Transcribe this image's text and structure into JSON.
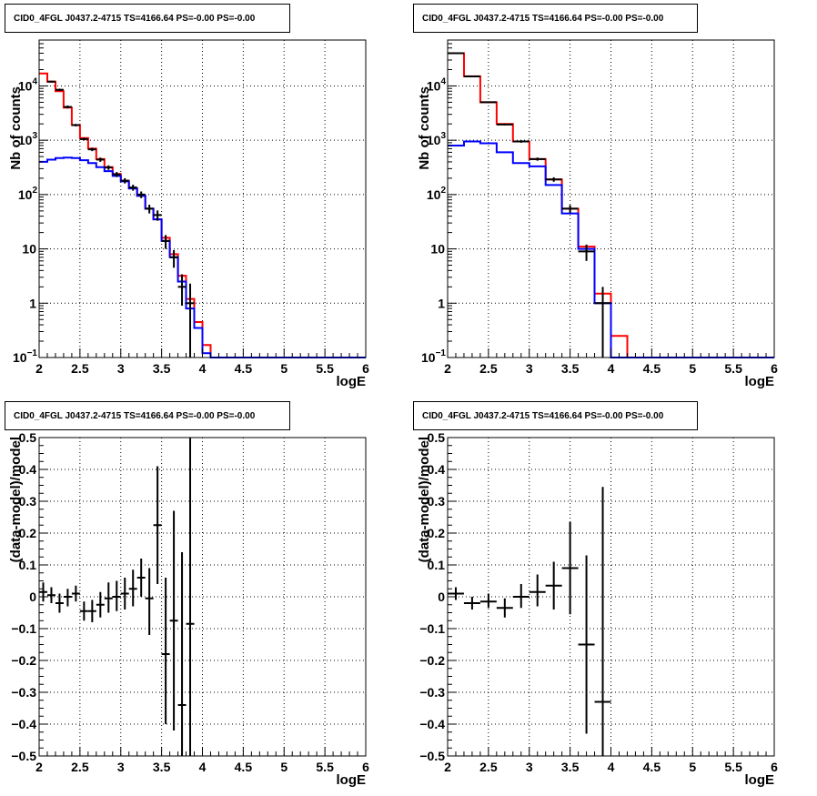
{
  "chart_data": [
    {
      "type": "line",
      "title": "CID0_4FGL J0437.2-4715 TS=4166.64 PS=-0.00 PS=-0.00",
      "xlabel": "logE",
      "ylabel": "Nb of counts",
      "xlim": [
        2,
        6
      ],
      "ylim": [
        0.1,
        70000
      ],
      "ylog": true,
      "grid": true,
      "xticks": [
        "2",
        "2.5",
        "3",
        "3.5",
        "4",
        "4.5",
        "5",
        "5.5",
        "6"
      ],
      "yticks": [
        {
          "v": 0.1,
          "m": "10",
          "e": "−1"
        },
        {
          "v": 1,
          "m": "1",
          "e": ""
        },
        {
          "v": 10,
          "m": "10",
          "e": ""
        },
        {
          "v": 100,
          "m": "10",
          "e": "2"
        },
        {
          "v": 1000,
          "m": "10",
          "e": "3"
        },
        {
          "v": 10000,
          "m": "10",
          "e": "4"
        }
      ],
      "series": [
        {
          "color": "#ff0000",
          "kind": "step",
          "edges": [
            2,
            2.1,
            2.2,
            2.3,
            2.4,
            2.5,
            2.6,
            2.7,
            2.8,
            2.9,
            3,
            3.1,
            3.2,
            3.3,
            3.4,
            3.5,
            3.6,
            3.7,
            3.8,
            3.9,
            4,
            4.1,
            4.2,
            4.3,
            4.4,
            4.5,
            4.6,
            4.7,
            4.8,
            4.9,
            5,
            5.1,
            5.2,
            5.3,
            5.4,
            5.5,
            5.6,
            5.7,
            5.8,
            5.9,
            6
          ],
          "values": [
            17000,
            12000,
            8000,
            4000,
            1900,
            1100,
            700,
            450,
            320,
            240,
            180,
            130,
            95,
            55,
            35,
            16,
            8,
            3.2,
            1.2,
            0.45,
            0.17,
            0.1,
            0.1,
            0.1,
            0.1,
            0.1,
            0.1,
            0.1,
            0.1,
            0.1,
            0.1,
            0.1,
            0.1,
            0.1,
            0.1,
            0.1,
            0.1,
            0.1,
            0.1,
            0.1
          ]
        },
        {
          "color": "#0000ff",
          "kind": "step",
          "edges": [
            2,
            2.1,
            2.2,
            2.3,
            2.4,
            2.5,
            2.6,
            2.7,
            2.8,
            2.9,
            3,
            3.1,
            3.2,
            3.3,
            3.4,
            3.5,
            3.6,
            3.7,
            3.8,
            3.9,
            4,
            4.1,
            4.2,
            4.3,
            4.4,
            4.5,
            4.6,
            4.7,
            4.8,
            4.9,
            5,
            5.1,
            5.2,
            5.3,
            5.4,
            5.5,
            5.6,
            5.7,
            5.8,
            5.9,
            6
          ],
          "values": [
            400,
            440,
            470,
            480,
            470,
            430,
            380,
            320,
            270,
            220,
            175,
            130,
            95,
            55,
            35,
            14,
            7,
            2.5,
            0.8,
            0.35,
            0.12,
            0.1,
            0.1,
            0.1,
            0.1,
            0.1,
            0.1,
            0.1,
            0.1,
            0.1,
            0.1,
            0.1,
            0.1,
            0.1,
            0.1,
            0.1,
            0.1,
            0.1,
            0.1,
            0.1
          ]
        },
        {
          "color": "#000000",
          "kind": "errorbars",
          "points": [
            {
              "x": 2.15,
              "y": 12000,
              "lo": 11500,
              "hi": 12500,
              "xerr": 0.05
            },
            {
              "x": 2.25,
              "y": 8500,
              "lo": 8100,
              "hi": 8900,
              "xerr": 0.05
            },
            {
              "x": 2.35,
              "y": 4100,
              "lo": 3850,
              "hi": 4350,
              "xerr": 0.05
            },
            {
              "x": 2.45,
              "y": 1900,
              "lo": 1800,
              "hi": 2000,
              "xerr": 0.05
            },
            {
              "x": 2.55,
              "y": 1050,
              "lo": 990,
              "hi": 1110,
              "xerr": 0.05
            },
            {
              "x": 2.65,
              "y": 680,
              "lo": 630,
              "hi": 730,
              "xerr": 0.05
            },
            {
              "x": 2.75,
              "y": 440,
              "lo": 400,
              "hi": 480,
              "xerr": 0.05
            },
            {
              "x": 2.85,
              "y": 315,
              "lo": 285,
              "hi": 345,
              "xerr": 0.05
            },
            {
              "x": 2.95,
              "y": 235,
              "lo": 210,
              "hi": 260,
              "xerr": 0.05
            },
            {
              "x": 3.05,
              "y": 180,
              "lo": 160,
              "hi": 200,
              "xerr": 0.05
            },
            {
              "x": 3.15,
              "y": 135,
              "lo": 118,
              "hi": 152,
              "xerr": 0.05
            },
            {
              "x": 3.25,
              "y": 100,
              "lo": 86,
              "hi": 114,
              "xerr": 0.05
            },
            {
              "x": 3.35,
              "y": 55,
              "lo": 45,
              "hi": 65,
              "xerr": 0.05
            },
            {
              "x": 3.45,
              "y": 42,
              "lo": 33,
              "hi": 51,
              "xerr": 0.05
            },
            {
              "x": 3.55,
              "y": 14,
              "lo": 10,
              "hi": 18,
              "xerr": 0.05
            },
            {
              "x": 3.65,
              "y": 7,
              "lo": 4.5,
              "hi": 9.5,
              "xerr": 0.05
            },
            {
              "x": 3.75,
              "y": 2,
              "lo": 0.9,
              "hi": 3.4,
              "xerr": 0.05
            },
            {
              "x": 3.85,
              "y": 1,
              "lo": 0.1,
              "hi": 2.3,
              "xerr": 0.05
            }
          ]
        }
      ]
    },
    {
      "type": "line",
      "title": "CID0_4FGL J0437.2-4715 TS=4166.64 PS=-0.00 PS=-0.00",
      "xlabel": "logE",
      "ylabel": "Nb of counts",
      "xlim": [
        2,
        6
      ],
      "ylim": [
        0.1,
        70000
      ],
      "ylog": true,
      "grid": true,
      "xticks": [
        "2",
        "2.5",
        "3",
        "3.5",
        "4",
        "4.5",
        "5",
        "5.5",
        "6"
      ],
      "yticks": [
        {
          "v": 0.1,
          "m": "10",
          "e": "−1"
        },
        {
          "v": 1,
          "m": "1",
          "e": ""
        },
        {
          "v": 10,
          "m": "10",
          "e": ""
        },
        {
          "v": 100,
          "m": "10",
          "e": "2"
        },
        {
          "v": 1000,
          "m": "10",
          "e": "3"
        },
        {
          "v": 10000,
          "m": "10",
          "e": "4"
        }
      ],
      "series": [
        {
          "color": "#ff0000",
          "kind": "step",
          "edges": [
            2,
            2.2,
            2.4,
            2.6,
            2.8,
            3,
            3.2,
            3.4,
            3.6,
            3.8,
            4,
            4.2,
            4.4,
            4.6,
            4.8,
            5,
            5.2,
            5.4,
            5.6,
            5.8,
            6
          ],
          "values": [
            40000,
            15000,
            5000,
            2000,
            950,
            450,
            190,
            55,
            11,
            1.5,
            0.25,
            0.1,
            0.1,
            0.1,
            0.1,
            0.1,
            0.1,
            0.1,
            0.1,
            0.1
          ]
        },
        {
          "color": "#0000ff",
          "kind": "step",
          "edges": [
            2,
            2.2,
            2.4,
            2.6,
            2.8,
            3,
            3.2,
            3.4,
            3.6,
            3.8,
            4,
            4.2,
            4.4,
            4.6,
            4.8,
            5,
            5.2,
            5.4,
            5.6,
            5.8,
            6
          ],
          "values": [
            800,
            950,
            880,
            600,
            380,
            330,
            150,
            45,
            10,
            1,
            0.1,
            0.1,
            0.1,
            0.1,
            0.1,
            0.1,
            0.1,
            0.1,
            0.1,
            0.1
          ]
        },
        {
          "color": "#000000",
          "kind": "errorbars",
          "points": [
            {
              "x": 2.1,
              "y": 40000,
              "lo": 39000,
              "hi": 41000,
              "xerr": 0.1
            },
            {
              "x": 2.3,
              "y": 15000,
              "lo": 14600,
              "hi": 15400,
              "xerr": 0.1
            },
            {
              "x": 2.5,
              "y": 5000,
              "lo": 4850,
              "hi": 5150,
              "xerr": 0.1
            },
            {
              "x": 2.7,
              "y": 1950,
              "lo": 1880,
              "hi": 2020,
              "xerr": 0.1
            },
            {
              "x": 2.9,
              "y": 950,
              "lo": 900,
              "hi": 1000,
              "xerr": 0.1
            },
            {
              "x": 3.1,
              "y": 450,
              "lo": 420,
              "hi": 480,
              "xerr": 0.1
            },
            {
              "x": 3.3,
              "y": 190,
              "lo": 172,
              "hi": 208,
              "xerr": 0.1
            },
            {
              "x": 3.5,
              "y": 55,
              "lo": 46,
              "hi": 64,
              "xerr": 0.1
            },
            {
              "x": 3.7,
              "y": 9,
              "lo": 6,
              "hi": 12,
              "xerr": 0.1
            },
            {
              "x": 3.9,
              "y": 1,
              "lo": 0.1,
              "hi": 2,
              "xerr": 0.1
            }
          ]
        }
      ]
    },
    {
      "type": "scatter",
      "title": "CID0_4FGL J0437.2-4715 TS=4166.64 PS=-0.00 PS=-0.00",
      "xlabel": "logE",
      "ylabel": "(data-model)/model",
      "xlim": [
        2,
        6
      ],
      "ylim": [
        -0.5,
        0.5
      ],
      "ylog": false,
      "grid": true,
      "xticks": [
        "2",
        "2.5",
        "3",
        "3.5",
        "4",
        "4.5",
        "5",
        "5.5",
        "6"
      ],
      "yticks": [
        {
          "v": -0.5,
          "m": "−0.5",
          "e": ""
        },
        {
          "v": -0.4,
          "m": "−0.4",
          "e": ""
        },
        {
          "v": -0.3,
          "m": "−0.3",
          "e": ""
        },
        {
          "v": -0.2,
          "m": "−0.2",
          "e": ""
        },
        {
          "v": -0.1,
          "m": "−0.1",
          "e": ""
        },
        {
          "v": 0,
          "m": "0",
          "e": ""
        },
        {
          "v": 0.1,
          "m": "0.1",
          "e": ""
        },
        {
          "v": 0.2,
          "m": "0.2",
          "e": ""
        },
        {
          "v": 0.3,
          "m": "0.3",
          "e": ""
        },
        {
          "v": 0.4,
          "m": "0.4",
          "e": ""
        },
        {
          "v": 0.5,
          "m": "0.5",
          "e": ""
        }
      ],
      "series": [
        {
          "color": "#000000",
          "kind": "errorbars",
          "points": [
            {
              "x": 2.05,
              "y": 0.015,
              "lo": -0.015,
              "hi": 0.045,
              "xerr": 0.05
            },
            {
              "x": 2.15,
              "y": 0.005,
              "lo": -0.02,
              "hi": 0.03,
              "xerr": 0.05
            },
            {
              "x": 2.25,
              "y": -0.02,
              "lo": -0.05,
              "hi": 0.01,
              "xerr": 0.05
            },
            {
              "x": 2.35,
              "y": 0.0,
              "lo": -0.03,
              "hi": 0.025,
              "xerr": 0.05
            },
            {
              "x": 2.45,
              "y": 0.01,
              "lo": -0.015,
              "hi": 0.035,
              "xerr": 0.05
            },
            {
              "x": 2.55,
              "y": -0.045,
              "lo": -0.075,
              "hi": -0.015,
              "xerr": 0.05
            },
            {
              "x": 2.65,
              "y": -0.045,
              "lo": -0.08,
              "hi": -0.01,
              "xerr": 0.05
            },
            {
              "x": 2.75,
              "y": -0.025,
              "lo": -0.065,
              "hi": 0.015,
              "xerr": 0.05
            },
            {
              "x": 2.85,
              "y": -0.005,
              "lo": -0.05,
              "hi": 0.045,
              "xerr": 0.05
            },
            {
              "x": 2.95,
              "y": 0.0,
              "lo": -0.045,
              "hi": 0.05,
              "xerr": 0.05
            },
            {
              "x": 3.05,
              "y": 0.01,
              "lo": -0.04,
              "hi": 0.06,
              "xerr": 0.05
            },
            {
              "x": 3.15,
              "y": 0.025,
              "lo": -0.03,
              "hi": 0.085,
              "xerr": 0.05
            },
            {
              "x": 3.25,
              "y": 0.06,
              "lo": 0.0,
              "hi": 0.12,
              "xerr": 0.05
            },
            {
              "x": 3.35,
              "y": -0.005,
              "lo": -0.12,
              "hi": 0.09,
              "xerr": 0.05
            },
            {
              "x": 3.45,
              "y": 0.225,
              "lo": 0.04,
              "hi": 0.41,
              "xerr": 0.05
            },
            {
              "x": 3.55,
              "y": -0.18,
              "lo": -0.4,
              "hi": 0.06,
              "xerr": 0.05
            },
            {
              "x": 3.65,
              "y": -0.075,
              "lo": -0.42,
              "hi": 0.27,
              "xerr": 0.05
            },
            {
              "x": 3.75,
              "y": -0.34,
              "lo": -0.5,
              "hi": 0.14,
              "xerr": 0.05
            },
            {
              "x": 3.85,
              "y": -0.085,
              "lo": -0.5,
              "hi": 0.5,
              "xerr": 0.05
            }
          ]
        }
      ]
    },
    {
      "type": "scatter",
      "title": "CID0_4FGL J0437.2-4715 TS=4166.64 PS=-0.00 PS=-0.00",
      "xlabel": "logE",
      "ylabel": "(data-model)/model",
      "xlim": [
        2,
        6
      ],
      "ylim": [
        -0.5,
        0.5
      ],
      "ylog": false,
      "grid": true,
      "xticks": [
        "2",
        "2.5",
        "3",
        "3.5",
        "4",
        "4.5",
        "5",
        "5.5",
        "6"
      ],
      "yticks": [
        {
          "v": -0.5,
          "m": "−0.5",
          "e": ""
        },
        {
          "v": -0.4,
          "m": "−0.4",
          "e": ""
        },
        {
          "v": -0.3,
          "m": "−0.3",
          "e": ""
        },
        {
          "v": -0.2,
          "m": "−0.2",
          "e": ""
        },
        {
          "v": -0.1,
          "m": "−0.1",
          "e": ""
        },
        {
          "v": 0,
          "m": "0",
          "e": ""
        },
        {
          "v": 0.1,
          "m": "0.1",
          "e": ""
        },
        {
          "v": 0.2,
          "m": "0.2",
          "e": ""
        },
        {
          "v": 0.3,
          "m": "0.3",
          "e": ""
        },
        {
          "v": 0.4,
          "m": "0.4",
          "e": ""
        },
        {
          "v": 0.5,
          "m": "0.5",
          "e": ""
        }
      ],
      "series": [
        {
          "color": "#000000",
          "kind": "errorbars",
          "points": [
            {
              "x": 2.1,
              "y": 0.01,
              "lo": -0.01,
              "hi": 0.03,
              "xerr": 0.1
            },
            {
              "x": 2.3,
              "y": -0.02,
              "lo": -0.04,
              "hi": 0.0,
              "xerr": 0.1
            },
            {
              "x": 2.5,
              "y": -0.015,
              "lo": -0.035,
              "hi": 0.01,
              "xerr": 0.1
            },
            {
              "x": 2.7,
              "y": -0.035,
              "lo": -0.065,
              "hi": -0.005,
              "xerr": 0.1
            },
            {
              "x": 2.9,
              "y": 0.0,
              "lo": -0.035,
              "hi": 0.04,
              "xerr": 0.1
            },
            {
              "x": 3.1,
              "y": 0.015,
              "lo": -0.03,
              "hi": 0.07,
              "xerr": 0.1
            },
            {
              "x": 3.3,
              "y": 0.035,
              "lo": -0.04,
              "hi": 0.11,
              "xerr": 0.1
            },
            {
              "x": 3.5,
              "y": 0.09,
              "lo": -0.055,
              "hi": 0.235,
              "xerr": 0.1
            },
            {
              "x": 3.7,
              "y": -0.15,
              "lo": -0.43,
              "hi": 0.13,
              "xerr": 0.1
            },
            {
              "x": 3.9,
              "y": -0.33,
              "lo": -0.5,
              "hi": 0.345,
              "xerr": 0.1
            }
          ]
        }
      ]
    }
  ]
}
